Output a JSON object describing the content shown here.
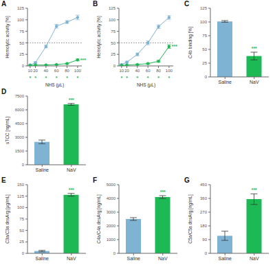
{
  "chart_data": [
    {
      "type": "line",
      "title": "A",
      "x": [
        10,
        20,
        40,
        60,
        80,
        100
      ],
      "series": [
        {
          "color": "#7fb3d3",
          "marker": "circle",
          "values": [
            2,
            7,
            42,
            86,
            95,
            105
          ],
          "errors": [
            1,
            2,
            3,
            4,
            3,
            5
          ]
        },
        {
          "color": "#1db954",
          "marker": "circle",
          "values": [
            1,
            2,
            2,
            3,
            5,
            13
          ],
          "errors": [
            0.5,
            0.5,
            0.5,
            0.5,
            1,
            2
          ]
        }
      ],
      "xlabel": "NHS (μL)",
      "ylabel": "Hemolytic activity [%]",
      "xlim": [
        5,
        108
      ],
      "xticks": [
        10,
        20,
        40,
        60,
        80,
        100
      ],
      "ylim": [
        0,
        125
      ],
      "yticks": [
        0,
        25,
        50,
        75,
        100,
        125
      ],
      "hline": 50,
      "annotations": [
        {
          "text": "*",
          "x": 10,
          "color": "#1db954"
        },
        {
          "text": "*",
          "x": 20,
          "color": "#1db954"
        },
        {
          "text": "*",
          "x": 40,
          "color": "#1db954"
        },
        {
          "text": "*",
          "x": 60,
          "color": "#1db954"
        },
        {
          "text": "*",
          "x": 80,
          "color": "#1db954"
        },
        {
          "text": "*",
          "x": 100,
          "color": "#1db954"
        },
        {
          "text": "***",
          "x": 100,
          "y": 13,
          "color": "#1db954"
        }
      ]
    },
    {
      "type": "line",
      "title": "B",
      "x": [
        10,
        20,
        40,
        60,
        80,
        100
      ],
      "series": [
        {
          "color": "#7fb3d3",
          "marker": "circle",
          "values": [
            3,
            8,
            25,
            50,
            85,
            105
          ],
          "errors": [
            1,
            2,
            3,
            4,
            4,
            4
          ]
        },
        {
          "color": "#1db954",
          "marker": "circle",
          "values": [
            1,
            2,
            3,
            5,
            10,
            42
          ],
          "errors": [
            0.5,
            0.5,
            0.5,
            1,
            2,
            4
          ]
        }
      ],
      "xlabel": "NHS (μL)",
      "ylabel": "Hemolytic activity [%]",
      "xlim": [
        5,
        108
      ],
      "xticks": [
        10,
        20,
        40,
        60,
        80,
        100
      ],
      "ylim": [
        0,
        125
      ],
      "yticks": [
        0,
        25,
        50,
        75,
        100,
        125
      ],
      "hline": 50,
      "annotations": [
        {
          "text": "*",
          "x": 10,
          "color": "#1db954"
        },
        {
          "text": "*",
          "x": 20,
          "color": "#1db954"
        },
        {
          "text": "*",
          "x": 40,
          "color": "#1db954"
        },
        {
          "text": "*",
          "x": 60,
          "color": "#1db954"
        },
        {
          "text": "*",
          "x": 80,
          "color": "#1db954"
        },
        {
          "text": "*",
          "x": 100,
          "color": "#1db954"
        },
        {
          "text": "***",
          "x": 100,
          "y": 42,
          "color": "#1db954"
        }
      ]
    },
    {
      "type": "bar",
      "title": "C",
      "categories": [
        "Saline",
        "NaV"
      ],
      "values": [
        101,
        38
      ],
      "errors": [
        1.5,
        7
      ],
      "colors": [
        "#7fb3d3",
        "#1db954"
      ],
      "ylabel": "C4b binding [%]",
      "ylim": [
        0,
        125
      ],
      "yticks": [
        0,
        25,
        50,
        75,
        100,
        125
      ],
      "annotations": [
        {
          "text": "***",
          "category": "NaV",
          "color": "#1db954"
        }
      ]
    },
    {
      "type": "bar",
      "title": "D",
      "categories": [
        "Saline",
        "NaV"
      ],
      "values": [
        2500,
        6600
      ],
      "errors": [
        200,
        100
      ],
      "colors": [
        "#7fb3d3",
        "#1db954"
      ],
      "ylabel": "sTCC [ng/mL]",
      "ylim": [
        0,
        7500
      ],
      "yticks": [
        0,
        1500,
        3000,
        4500,
        6000,
        7500
      ],
      "annotations": [
        {
          "text": "***",
          "category": "NaV",
          "color": "#1db954"
        }
      ]
    },
    {
      "type": "bar",
      "title": "E",
      "categories": [
        "Saline",
        "NaV"
      ],
      "values": [
        5,
        128
      ],
      "errors": [
        1.5,
        3
      ],
      "colors": [
        "#7fb3d3",
        "#1db954"
      ],
      "ylabel": "C3a/C3a desArg [μg/mL]",
      "ylim": [
        0,
        150
      ],
      "yticks": [
        0,
        25,
        50,
        75,
        100,
        125,
        150
      ],
      "annotations": [
        {
          "text": "***",
          "category": "NaV",
          "color": "#1db954"
        }
      ]
    },
    {
      "type": "bar",
      "title": "F",
      "categories": [
        "Saline",
        "NaV"
      ],
      "values": [
        2500,
        4100
      ],
      "errors": [
        100,
        100
      ],
      "colors": [
        "#7fb3d3",
        "#1db954"
      ],
      "ylabel": "C4a/C4a desArg [ng/mL]",
      "ylim": [
        0,
        5000
      ],
      "yticks": [
        0,
        1000,
        2000,
        3000,
        4000,
        5000
      ],
      "annotations": [
        {
          "text": "***",
          "category": "NaV",
          "color": "#1db954"
        }
      ]
    },
    {
      "type": "bar",
      "title": "G",
      "categories": [
        "Saline",
        "NaV"
      ],
      "values": [
        115,
        355
      ],
      "errors": [
        30,
        35
      ],
      "colors": [
        "#7fb3d3",
        "#1db954"
      ],
      "ylabel": "C5a/C5a desArg [ng/mL]",
      "ylim": [
        0,
        450
      ],
      "yticks": [
        0,
        90,
        180,
        270,
        360,
        450
      ],
      "annotations": [
        {
          "text": "***",
          "category": "NaV",
          "color": "#1db954"
        }
      ]
    }
  ]
}
